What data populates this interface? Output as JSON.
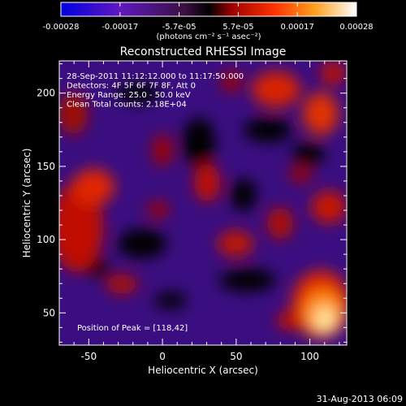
{
  "colorbar": {
    "tick_labels": [
      "-0.00028",
      "-0.00017",
      "-5.7e-05",
      "5.7e-05",
      "0.00017",
      "0.00028"
    ],
    "unit_label": "(photons cm⁻² s⁻¹ asec⁻²)",
    "range": [
      -0.00028,
      0.00028
    ]
  },
  "image": {
    "title": "Reconstructed RHESSI Image",
    "info_lines": [
      "28-Sep-2011 11:12:12.000 to 11:17:50.000",
      "Detectors: 4F 5F 6F 7F 8F, Att 0",
      "Energy Range: 25.0 - 50.0 keV",
      "Clean     Total counts: 2.18E+04"
    ],
    "peak_label": "Position of Peak = [118,42]",
    "peak": [
      118,
      42
    ]
  },
  "axes": {
    "xlabel": "Heliocentric X (arcsec)",
    "ylabel": "Heliocentric Y (arcsec)",
    "xlim": [
      -70,
      125
    ],
    "ylim": [
      28,
      222
    ],
    "xticks": [
      -50,
      0,
      50,
      100
    ],
    "yticks": [
      50,
      100,
      150,
      200
    ]
  },
  "footer": {
    "timestamp": "31-Aug-2013 06:09"
  }
}
